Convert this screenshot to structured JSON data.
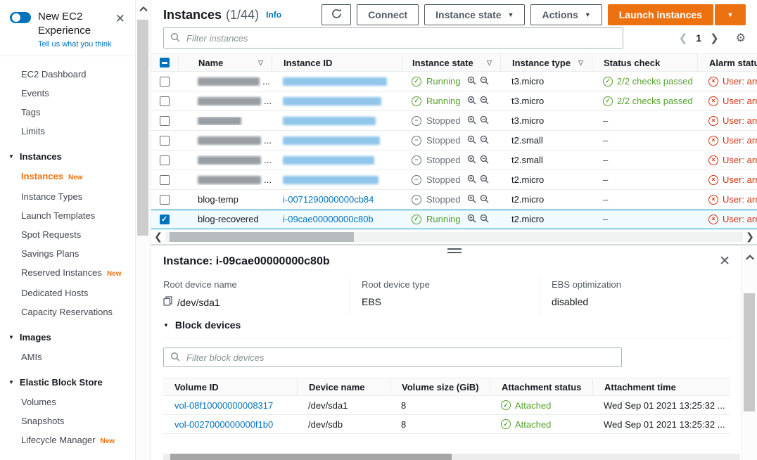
{
  "colors": {
    "accent": "#ec7211",
    "link": "#0073bb",
    "success": "#55a12c",
    "error": "#d13212",
    "stopped": "#687078",
    "selected_bg": "#f1faff",
    "selected_border": "#00a1c9"
  },
  "sidebar": {
    "experience": {
      "title": "New EC2 Experience",
      "link": "Tell us what you think"
    },
    "sections": [
      {
        "header": null,
        "items": [
          {
            "label": "EC2 Dashboard"
          },
          {
            "label": "Events"
          },
          {
            "label": "Tags"
          },
          {
            "label": "Limits"
          }
        ]
      },
      {
        "header": "Instances",
        "items": [
          {
            "label": "Instances",
            "badge": "New",
            "active": true
          },
          {
            "label": "Instance Types"
          },
          {
            "label": "Launch Templates"
          },
          {
            "label": "Spot Requests"
          },
          {
            "label": "Savings Plans"
          },
          {
            "label": "Reserved Instances",
            "badge": "New"
          },
          {
            "label": "Dedicated Hosts"
          },
          {
            "label": "Capacity Reservations"
          }
        ]
      },
      {
        "header": "Images",
        "items": [
          {
            "label": "AMIs"
          }
        ]
      },
      {
        "header": "Elastic Block Store",
        "items": [
          {
            "label": "Volumes"
          },
          {
            "label": "Snapshots"
          },
          {
            "label": "Lifecycle Manager",
            "badge": "New"
          }
        ]
      }
    ]
  },
  "header": {
    "title": "Instances",
    "count": "(1/44)",
    "info_label": "Info",
    "connect_label": "Connect",
    "instance_state_label": "Instance state",
    "actions_label": "Actions",
    "launch_label": "Launch instances"
  },
  "toolbar": {
    "filter_placeholder": "Filter instances",
    "page": "1"
  },
  "instances_table": {
    "columns": [
      "Name",
      "Instance ID",
      "Instance state",
      "Instance type",
      "Status check",
      "Alarm status"
    ],
    "rows": [
      {
        "redacted": true,
        "name_ellipsis": true,
        "state": "Running",
        "type": "t3.micro",
        "status_check": "2/2 checks passed",
        "alarm": "User: arn:a",
        "selected": false
      },
      {
        "redacted": true,
        "name_ellipsis": true,
        "state": "Running",
        "type": "t3.micro",
        "status_check": "2/2 checks passed",
        "alarm": "User: arn:a",
        "selected": false
      },
      {
        "redacted": true,
        "name_ellipsis": false,
        "state": "Stopped",
        "type": "t3.micro",
        "status_check": "–",
        "alarm": "User: arn:a",
        "selected": false
      },
      {
        "redacted": true,
        "name_ellipsis": true,
        "state": "Stopped",
        "type": "t2.small",
        "status_check": "–",
        "alarm": "User: arn:a",
        "selected": false
      },
      {
        "redacted": true,
        "name_ellipsis": true,
        "state": "Stopped",
        "type": "t2.small",
        "status_check": "–",
        "alarm": "User: arn:a",
        "selected": false
      },
      {
        "redacted": true,
        "name_ellipsis": true,
        "state": "Stopped",
        "type": "t2.micro",
        "status_check": "–",
        "alarm": "User: arn:a",
        "selected": false
      },
      {
        "redacted": false,
        "name": "blog-temp",
        "id": "i-0071290000000cb84",
        "state": "Stopped",
        "type": "t2.micro",
        "status_check": "–",
        "alarm": "User: arn:a",
        "selected": false
      },
      {
        "redacted": false,
        "name": "blog-recovered",
        "id": "i-09cae00000000c80b",
        "state": "Running",
        "type": "t2.micro",
        "status_check": "–",
        "alarm": "User: arn:a",
        "selected": true
      }
    ]
  },
  "detail": {
    "title": "Instance: i-09cae00000000c80b",
    "fields": [
      {
        "label": "Root device name",
        "value": "/dev/sda1"
      },
      {
        "label": "Root device type",
        "value": "EBS"
      },
      {
        "label": "EBS optimization",
        "value": "disabled"
      }
    ],
    "section_label": "Block devices",
    "filter_placeholder": "Filter block devices",
    "volumes_table": {
      "columns": [
        "Volume ID",
        "Device name",
        "Volume size (GiB)",
        "Attachment status",
        "Attachment time"
      ],
      "rows": [
        {
          "volume_id": "vol-08f10000000008317",
          "device_name": "/dev/sda1",
          "size": "8",
          "status": "Attached",
          "time": "Wed Sep 01 2021 13:25:32 ..."
        },
        {
          "volume_id": "vol-0027000000000f1b0",
          "device_name": "/dev/sdb",
          "size": "8",
          "status": "Attached",
          "time": "Wed Sep 01 2021 13:25:32 ..."
        }
      ]
    }
  }
}
